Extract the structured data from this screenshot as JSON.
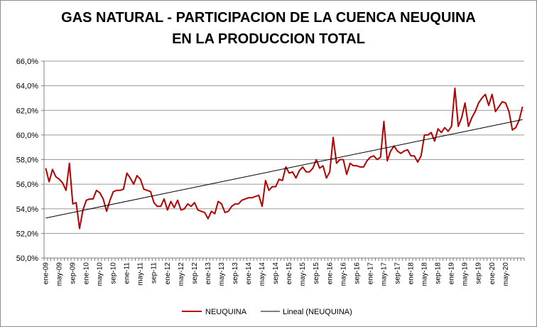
{
  "chart_data": {
    "type": "line",
    "title": "GAS NATURAL - PARTICIPACION DE LA CUENCA NEUQUINA",
    "subtitle": "EN LA PRODUCCION TOTAL",
    "xlabel": "",
    "ylabel": "",
    "ylim": [
      50.0,
      66.0
    ],
    "y_ticks": [
      "50,0%",
      "52,0%",
      "54,0%",
      "56,0%",
      "58,0%",
      "60,0%",
      "62,0%",
      "64,0%",
      "66,0%"
    ],
    "x_tick_labels": [
      "ene-09",
      "may-09",
      "sep-09",
      "ene-10",
      "may-10",
      "sep-10",
      "ene-11",
      "may-11",
      "sep-11",
      "ene-12",
      "may-12",
      "sep-12",
      "ene-13",
      "may-13",
      "sep-13",
      "ene-14",
      "may-14",
      "sep-14",
      "ene-15",
      "may-15",
      "sep-15",
      "ene-16",
      "may-16",
      "sep-16",
      "ene-17",
      "may-17",
      "sep-17",
      "ene-18",
      "may-18",
      "sep-18",
      "ene-19",
      "may-19",
      "sep-19",
      "ene-20",
      "may-20"
    ],
    "x_start": "2009-01",
    "grid": "horizontal",
    "legend_position": "bottom",
    "series": [
      {
        "name": "NEUQUINA",
        "color": "#b40000",
        "values": [
          57.3,
          56.2,
          57.2,
          56.6,
          56.4,
          56.1,
          55.5,
          57.7,
          54.4,
          54.5,
          52.4,
          53.9,
          54.7,
          54.8,
          54.8,
          55.5,
          55.3,
          54.8,
          53.8,
          54.7,
          55.4,
          55.5,
          55.5,
          55.6,
          56.9,
          56.5,
          56.0,
          56.7,
          56.4,
          55.6,
          55.5,
          55.4,
          54.5,
          54.2,
          54.2,
          54.8,
          53.9,
          54.6,
          54.1,
          54.7,
          53.9,
          54.0,
          54.4,
          54.2,
          54.5,
          53.9,
          53.8,
          53.7,
          53.2,
          53.8,
          53.6,
          54.6,
          54.4,
          53.7,
          53.8,
          54.2,
          54.4,
          54.4,
          54.7,
          54.8,
          54.9,
          54.9,
          55.0,
          55.1,
          54.2,
          56.3,
          55.5,
          55.8,
          55.8,
          56.4,
          56.3,
          57.4,
          56.9,
          57.0,
          56.5,
          57.1,
          57.4,
          57.0,
          57.0,
          57.3,
          58.0,
          57.3,
          57.5,
          56.5,
          57.0,
          59.8,
          57.7,
          58.0,
          58.0,
          56.8,
          57.7,
          57.5,
          57.5,
          57.4,
          57.4,
          57.9,
          58.2,
          58.3,
          58.0,
          58.2,
          61.1,
          57.9,
          58.7,
          59.1,
          58.7,
          58.5,
          58.7,
          58.8,
          58.3,
          58.3,
          57.8,
          58.3,
          60.0,
          60.0,
          60.2,
          59.5,
          60.5,
          60.2,
          60.6,
          60.3,
          60.7,
          63.8,
          60.7,
          61.4,
          62.6,
          60.7,
          61.4,
          61.9,
          62.6,
          63.0,
          63.3,
          62.4,
          63.3,
          61.9,
          62.3,
          62.7,
          62.6,
          61.9,
          60.4,
          60.6,
          61.2,
          62.3
        ]
      },
      {
        "name": "Lineal (NEUQUINA)",
        "color": "#000000",
        "values": [
          53.25,
          61.25
        ]
      }
    ]
  }
}
